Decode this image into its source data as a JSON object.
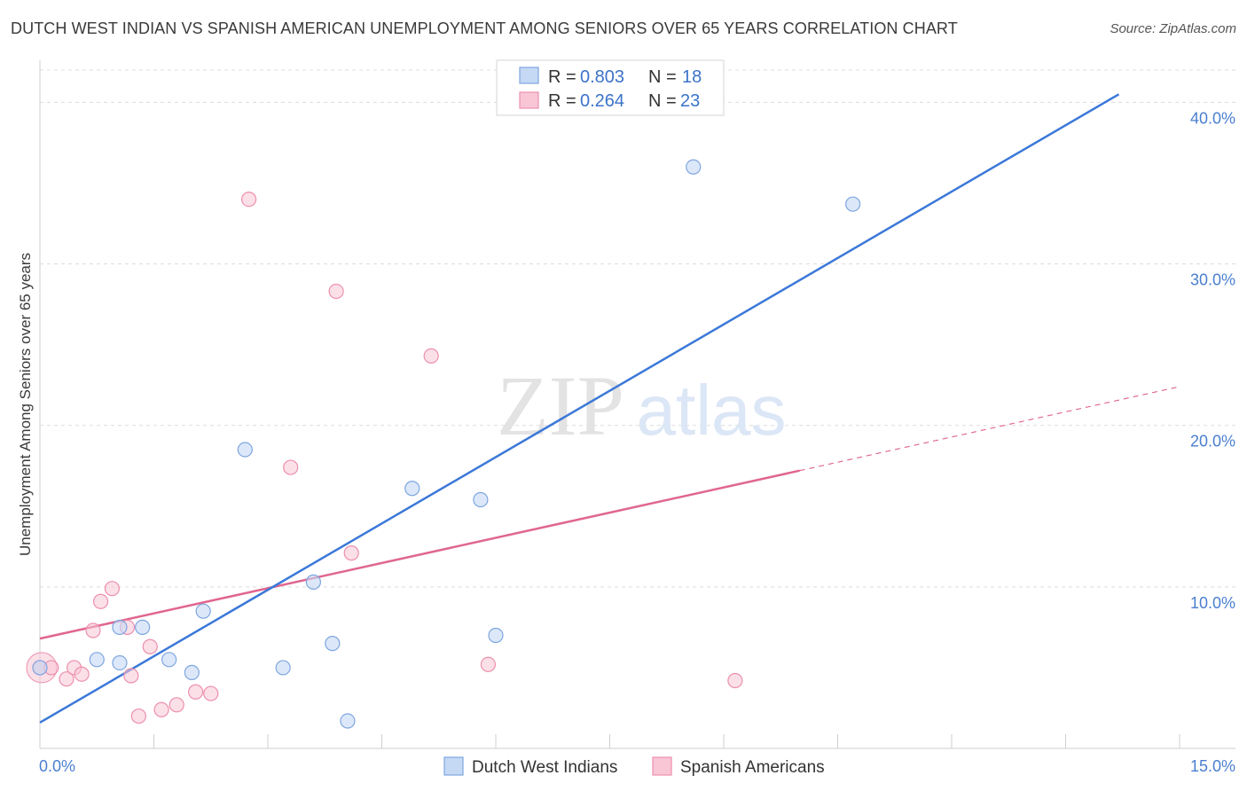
{
  "title": "DUTCH WEST INDIAN VS SPANISH AMERICAN UNEMPLOYMENT AMONG SENIORS OVER 65 YEARS CORRELATION CHART",
  "source": "Source: ZipAtlas.com",
  "watermark": {
    "zip": "ZIP",
    "atlas": "atlas"
  },
  "colors": {
    "blue": "#3b78d8",
    "blue_fill": "#c5d9f5",
    "blue_stroke": "#7ea6e0",
    "pink": "#e0668f",
    "pink_fill": "#f9c6d6",
    "pink_stroke": "#ec8fae",
    "grid": "#dcdcdc",
    "axis_text": "#4a7fd0"
  },
  "legend": {
    "rows": [
      {
        "r_label": "R = ",
        "r_value": "0.803",
        "n_label": "N = ",
        "n_value": "18"
      },
      {
        "r_label": "R = ",
        "r_value": "0.264",
        "n_label": "N = ",
        "n_value": "23"
      }
    ]
  },
  "chart_data": {
    "type": "scatter",
    "title": "DUTCH WEST INDIAN VS SPANISH AMERICAN UNEMPLOYMENT AMONG SENIORS OVER 65 YEARS CORRELATION CHART",
    "xlabel": "",
    "ylabel": "Unemployment Among Seniors over 65 years",
    "xlim": [
      0,
      15
    ],
    "ylim": [
      0,
      42
    ],
    "x_tick_labels": [
      "0.0%",
      "15.0%"
    ],
    "y_ticks": [
      10,
      20,
      30,
      40
    ],
    "y_tick_labels": [
      "10.0%",
      "20.0%",
      "30.0%",
      "40.0%"
    ],
    "grid": true,
    "legend_position": "top-center",
    "series": [
      {
        "name": "Dutch West Indians",
        "r": 0.803,
        "n": 18,
        "points": [
          [
            0.0,
            5.0
          ],
          [
            0.75,
            5.5
          ],
          [
            1.05,
            5.3
          ],
          [
            1.05,
            7.5
          ],
          [
            1.35,
            7.5
          ],
          [
            1.7,
            5.5
          ],
          [
            2.0,
            4.7
          ],
          [
            2.15,
            8.5
          ],
          [
            2.7,
            18.5
          ],
          [
            3.2,
            5.0
          ],
          [
            3.6,
            10.3
          ],
          [
            3.85,
            6.5
          ],
          [
            4.05,
            1.7
          ],
          [
            4.9,
            16.1
          ],
          [
            5.8,
            15.4
          ],
          [
            6.0,
            7.0
          ],
          [
            8.6,
            36.0
          ],
          [
            10.7,
            33.7
          ]
        ],
        "trend": {
          "x": [
            0.0,
            14.2
          ],
          "y": [
            1.6,
            40.5
          ]
        }
      },
      {
        "name": "Spanish Americans",
        "r": 0.264,
        "n": 23,
        "points": [
          [
            0.0,
            5.0
          ],
          [
            0.15,
            5.0
          ],
          [
            0.35,
            4.3
          ],
          [
            0.45,
            5.0
          ],
          [
            0.55,
            4.6
          ],
          [
            0.7,
            7.3
          ],
          [
            0.8,
            9.1
          ],
          [
            0.95,
            9.9
          ],
          [
            1.15,
            7.5
          ],
          [
            1.2,
            4.5
          ],
          [
            1.3,
            2.0
          ],
          [
            1.45,
            6.3
          ],
          [
            1.6,
            2.4
          ],
          [
            1.8,
            2.7
          ],
          [
            2.05,
            3.5
          ],
          [
            2.25,
            3.4
          ],
          [
            2.75,
            34.0
          ],
          [
            3.3,
            17.4
          ],
          [
            3.9,
            28.3
          ],
          [
            4.1,
            12.1
          ],
          [
            5.15,
            24.3
          ],
          [
            5.9,
            5.2
          ],
          [
            9.15,
            4.2
          ]
        ],
        "trend": {
          "x": [
            0.0,
            10.0
          ],
          "y": [
            6.8,
            17.2
          ]
        },
        "trend_dashed": {
          "x": [
            10.0,
            15.0
          ],
          "y": [
            17.2,
            22.4
          ]
        }
      }
    ]
  }
}
